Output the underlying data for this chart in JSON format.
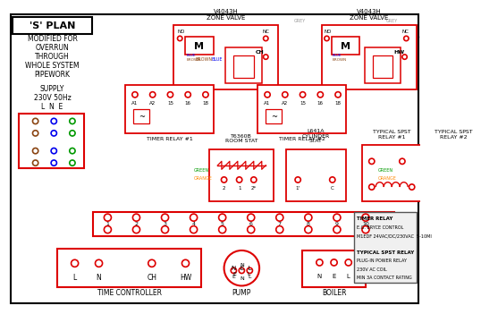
{
  "bg_color": "#ffffff",
  "red": "#dd0000",
  "blue": "#0000ee",
  "brown": "#8B4513",
  "green": "#009900",
  "orange": "#ff8800",
  "grey": "#999999",
  "black": "#111111",
  "pink": "#ff88bb",
  "plan_title": "'S' PLAN",
  "subtitle": [
    "MODIFIED FOR",
    "OVERRUN",
    "THROUGH",
    "WHOLE SYSTEM",
    "PIPEWORK"
  ],
  "supply": "SUPPLY\n230V 50Hz",
  "lne": "L  N  E",
  "zone1_label": "V4043H\nZONE VALVE",
  "zone2_label": "V4043H\nZONE VALVE",
  "timer1_label": "TIMER RELAY #1",
  "timer2_label": "TIMER RELAY #2",
  "roomstat_label": "T6360B\nROOM STAT",
  "cylstat_label": "L641A\nCYLINDER\nSTAT",
  "relay1_label": "TYPICAL SPST\nRELAY #1",
  "relay2_label": "TYPICAL SPST\nRELAY #2",
  "tc_label": "TIME CONTROLLER",
  "pump_label": "PUMP",
  "boiler_label": "BOILER",
  "legend": [
    "TIMER RELAY",
    "E.G. BRYCE CONTROL",
    "M1EDF 24VAC/DC/230VAC  5-10MI",
    "",
    "TYPICAL SPST RELAY",
    "PLUG-IN POWER RELAY",
    "230V AC COIL",
    "MIN 3A CONTACT RATING"
  ],
  "terminal_nums": [
    "1",
    "2",
    "3",
    "4",
    "5",
    "6",
    "7",
    "8",
    "9",
    "10"
  ],
  "timer_terms": [
    "A1",
    "A2",
    "15",
    "16",
    "18"
  ],
  "ch_label": "CH",
  "hw_label": "HW",
  "no_label": "NO",
  "nc_label": "NC",
  "m_label": "M",
  "blue_label": "BLUE",
  "brown_label": "BROWN",
  "green_label": "GREEN",
  "orange_label": "ORANGE",
  "grey_label": "GREY"
}
